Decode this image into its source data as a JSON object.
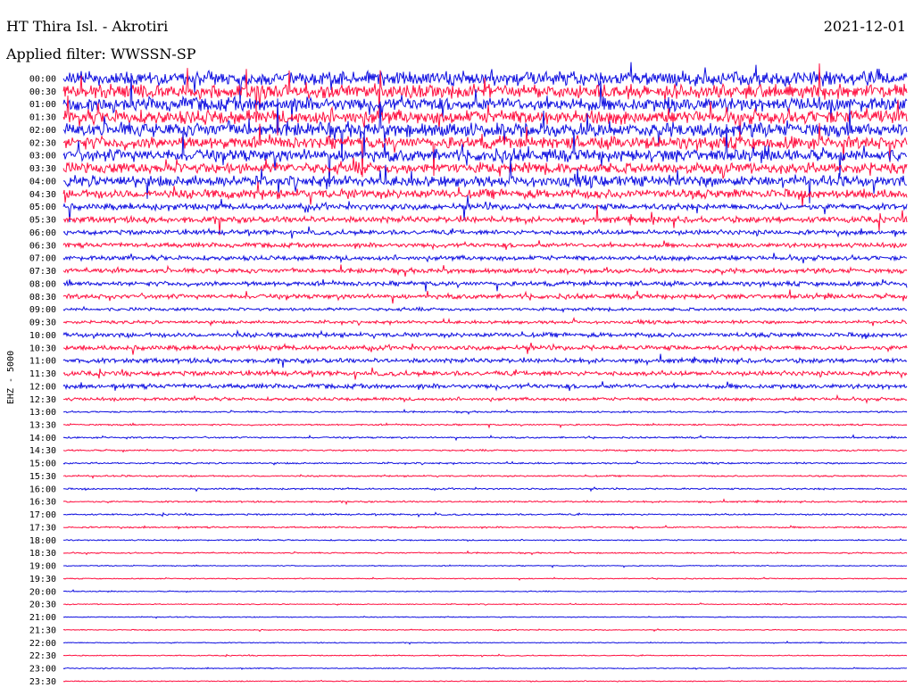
{
  "header": {
    "station": "HT Thira Isl. - Akrotiri",
    "date": "2021-12-01",
    "filter": "Applied filter: WWSSN-SP"
  },
  "chart_data": {
    "type": "helicorder",
    "channel_label": "EHZ - 5000",
    "colors": {
      "blue": "#1010e0",
      "red": "#ff1040"
    },
    "row_labels": [
      "00:00",
      "00:30",
      "01:00",
      "01:30",
      "02:00",
      "02:30",
      "03:00",
      "03:30",
      "04:00",
      "04:30",
      "05:00",
      "05:30",
      "06:00",
      "06:30",
      "07:00",
      "07:30",
      "08:00",
      "08:30",
      "09:00",
      "09:30",
      "10:00",
      "10:30",
      "11:00",
      "11:30",
      "12:00",
      "12:30",
      "13:00",
      "13:30",
      "14:00",
      "14:30",
      "15:00",
      "15:30",
      "16:00",
      "16:30",
      "17:00",
      "17:30",
      "18:00",
      "18:30",
      "19:00",
      "19:30",
      "20:00",
      "20:30",
      "21:00",
      "21:30",
      "22:00",
      "22:30",
      "23:00",
      "23:30"
    ],
    "row_colors": [
      "blue",
      "red",
      "blue",
      "red",
      "blue",
      "red",
      "blue",
      "red",
      "blue",
      "red",
      "blue",
      "red",
      "blue",
      "red",
      "blue",
      "red",
      "blue",
      "red",
      "blue",
      "red",
      "blue",
      "red",
      "blue",
      "red",
      "blue",
      "red",
      "blue",
      "red",
      "blue",
      "red",
      "blue",
      "red",
      "blue",
      "red",
      "blue",
      "red",
      "blue",
      "red",
      "blue",
      "red",
      "blue",
      "red",
      "blue",
      "red",
      "blue",
      "red",
      "blue",
      "red"
    ],
    "noise_level": [
      9,
      9,
      9,
      9,
      9,
      8,
      8,
      7,
      7,
      6,
      4,
      4,
      3,
      3,
      3,
      3,
      3,
      3,
      2,
      2,
      3,
      3,
      3,
      3,
      3,
      2,
      1,
      1,
      1,
      1,
      1,
      1,
      1,
      1,
      1,
      1,
      0.8,
      0.8,
      0.6,
      0.6,
      0.6,
      0.6,
      0.6,
      0.6,
      0.6,
      0.6,
      0.6,
      0.6
    ]
  }
}
